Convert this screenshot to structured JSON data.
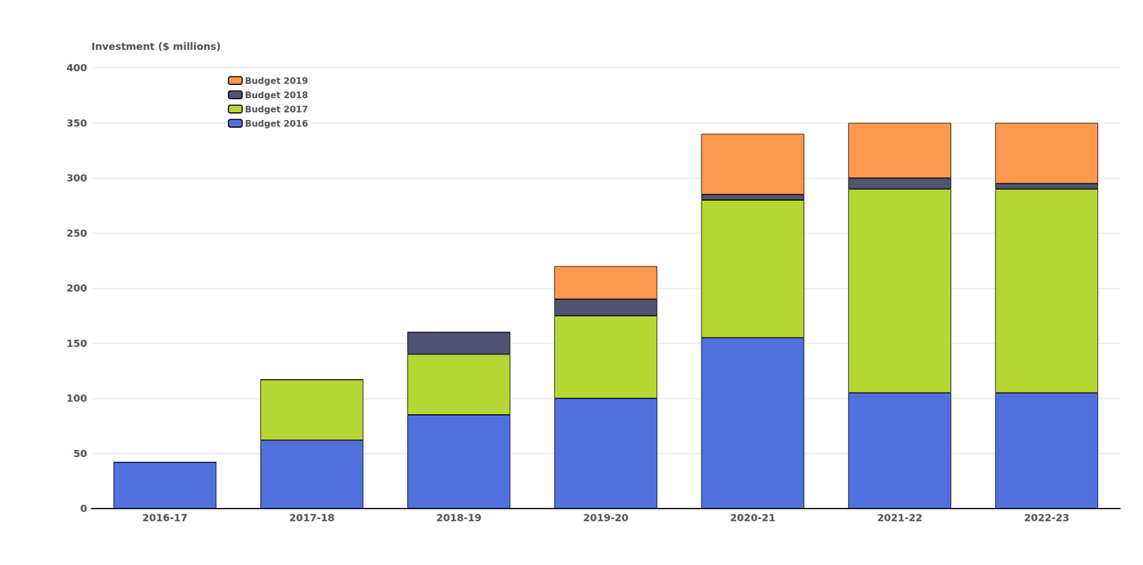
{
  "chart_data": {
    "type": "bar",
    "ylabel": "Investment ($ millions)",
    "categories": [
      "2016-17",
      "2017-18",
      "2018-19",
      "2019-20",
      "2020-21",
      "2021-22",
      "2022-23"
    ],
    "series": [
      {
        "name": "Budget 2016",
        "values": [
          42,
          62,
          85,
          100,
          155,
          105,
          105
        ]
      },
      {
        "name": "Budget 2017",
        "values": [
          0,
          55,
          55,
          75,
          125,
          185,
          185
        ]
      },
      {
        "name": "Budget 2018",
        "values": [
          0,
          0,
          20,
          15,
          5,
          10,
          5
        ]
      },
      {
        "name": "Budget 2019",
        "values": [
          0,
          0,
          0,
          30,
          55,
          50,
          55
        ]
      }
    ],
    "stacked": true,
    "ylim": [
      0,
      400
    ],
    "yticks": [
      0,
      50,
      100,
      150,
      200,
      250,
      300,
      350,
      400
    ],
    "grid": true,
    "legend": "upper left"
  }
}
